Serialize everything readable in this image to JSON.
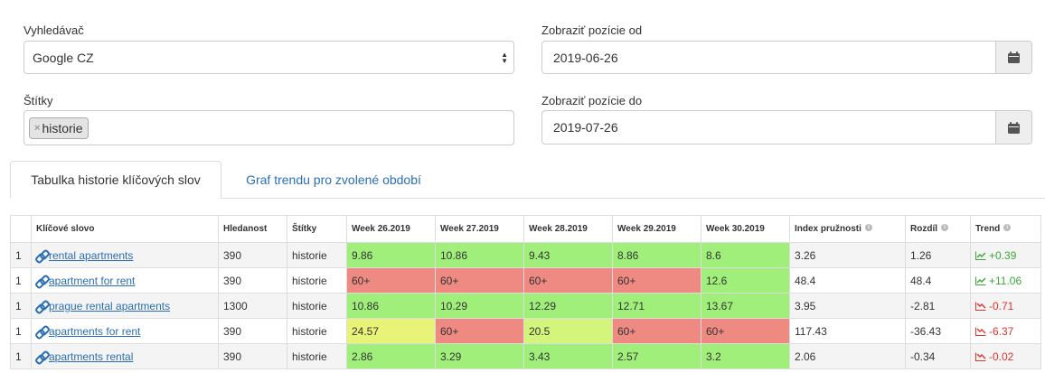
{
  "filters": {
    "engine_label": "Vyhledávač",
    "engine_value": "Google CZ",
    "tags_label": "Štítky",
    "tag_chip": "historie",
    "tag_remove": "×",
    "from_label": "Zobraziť pozície od",
    "from_value": "2019-06-26",
    "to_label": "Zobraziť pozície do",
    "to_value": "2019-07-26"
  },
  "tabs": [
    {
      "label": "Tabulka historie klíčových slov",
      "active": true
    },
    {
      "label": "Graf trendu pro zvolené období",
      "active": false
    }
  ],
  "table": {
    "headers": {
      "num": "",
      "keyword": "Klíčové slovo",
      "volume": "Hledanost",
      "tags": "Štítky",
      "w26": "Week 26.2019",
      "w27": "Week 27.2019",
      "w28": "Week 28.2019",
      "w29": "Week 29.2019",
      "w30": "Week 30.2019",
      "index": "Index pružnosti",
      "diff": "Rozdíl",
      "trend": "Trend",
      "info": "i"
    },
    "rows": [
      {
        "num": "1",
        "keyword": "rental apartments",
        "volume": "390",
        "tags": "historie",
        "w26": "9.86",
        "w27": "10.86",
        "w28": "9.43",
        "w29": "8.86",
        "w30": "8.6",
        "index": "3.26",
        "diff": "1.26",
        "trend": "+0.39"
      },
      {
        "num": "1",
        "keyword": "apartment for rent",
        "volume": "390",
        "tags": "historie",
        "w26": "60+",
        "w27": "60+",
        "w28": "60+",
        "w29": "60+",
        "w30": "12.6",
        "index": "48.4",
        "diff": "48.4",
        "trend": "+11.06"
      },
      {
        "num": "1",
        "keyword": "prague rental apartments",
        "volume": "1300",
        "tags": "historie",
        "w26": "10.86",
        "w27": "10.29",
        "w28": "12.29",
        "w29": "12.71",
        "w30": "13.67",
        "index": "3.95",
        "diff": "-2.81",
        "trend": "-0.71"
      },
      {
        "num": "1",
        "keyword": "apartments for rent",
        "volume": "390",
        "tags": "historie",
        "w26": "24.57",
        "w27": "60+",
        "w28": "20.5",
        "w29": "60+",
        "w30": "60+",
        "index": "117.43",
        "diff": "-36.43",
        "trend": "-6.37"
      },
      {
        "num": "1",
        "keyword": "apartments rental",
        "volume": "390",
        "tags": "historie",
        "w26": "2.86",
        "w27": "3.29",
        "w28": "3.43",
        "w29": "2.57",
        "w30": "3.2",
        "index": "2.06",
        "diff": "-0.34",
        "trend": "-0.02"
      }
    ]
  },
  "colors": {
    "good": "#a1ef7b",
    "bad": "#ef8a83",
    "warn": "#e8f478",
    "mid": "#d4f57c",
    "trend_up": "#3aa935",
    "trend_down": "#e0342c",
    "link": "#2a6fb5"
  }
}
